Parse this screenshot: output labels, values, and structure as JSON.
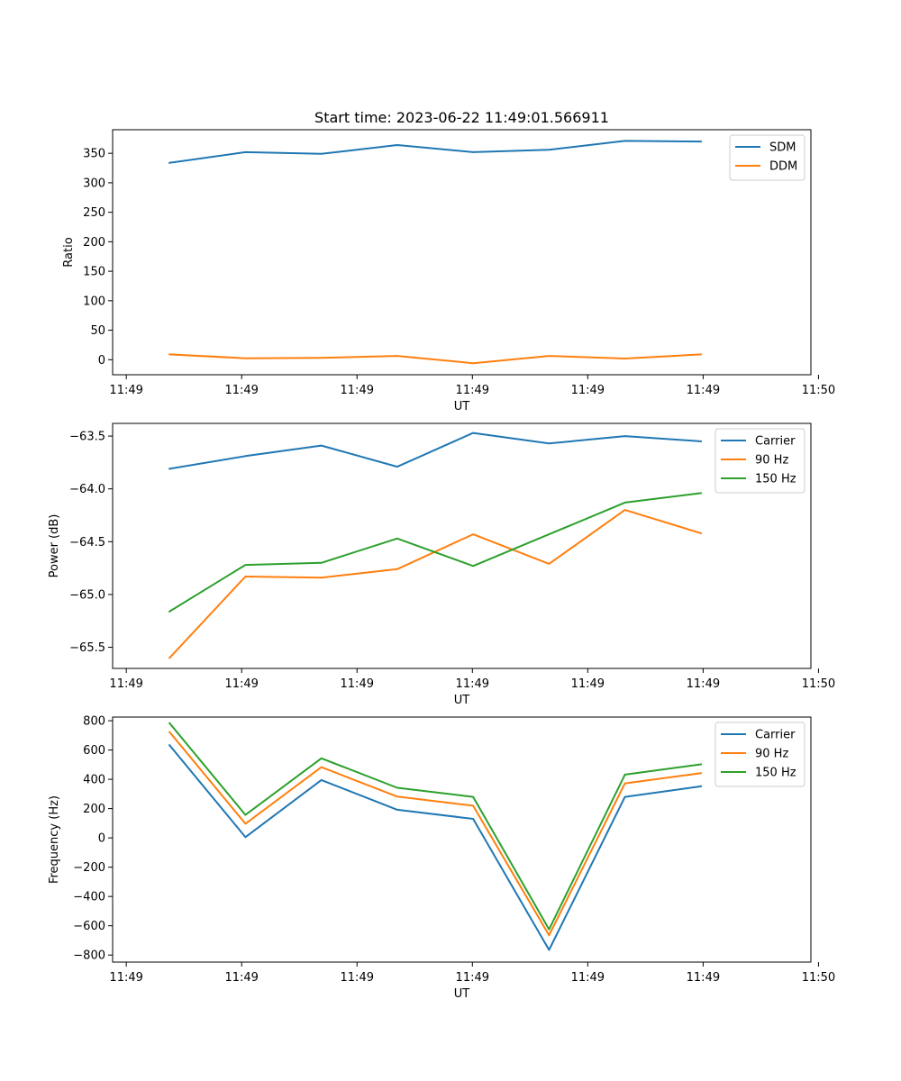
{
  "figure": {
    "title": "Start time: 2023-06-22 11:49:01.566911"
  },
  "chart_data": [
    {
      "type": "line",
      "title": "Start time: 2023-06-22 11:49:01.566911",
      "xlabel": "UT",
      "ylabel": "Ratio",
      "x": [
        1,
        2,
        3,
        4,
        5,
        6,
        7,
        8
      ],
      "xlim": [
        0.25,
        9.45
      ],
      "xticks": [
        0.43,
        1.95,
        3.47,
        4.99,
        6.51,
        8.03,
        9.55
      ],
      "xtick_labels": [
        "11:49",
        "11:49",
        "11:49",
        "11:49",
        "11:49",
        "11:49",
        "11:50"
      ],
      "ylim": [
        -25.5,
        390
      ],
      "yticks": [
        0,
        50,
        100,
        150,
        200,
        250,
        300,
        350
      ],
      "ytick_labels": [
        "0",
        "50",
        "100",
        "150",
        "200",
        "250",
        "300",
        "350"
      ],
      "legend_position": "top-right",
      "series": [
        {
          "name": "SDM",
          "color": "#1f77b4",
          "values": [
            334,
            352,
            349,
            364,
            352,
            356,
            371,
            370
          ]
        },
        {
          "name": "DDM",
          "color": "#ff7f0e",
          "values": [
            9,
            2.5,
            3,
            6.5,
            -6,
            6.5,
            2,
            9
          ]
        }
      ]
    },
    {
      "type": "line",
      "xlabel": "UT",
      "ylabel": "Power (dB)",
      "x": [
        1,
        2,
        3,
        4,
        5,
        6,
        7,
        8
      ],
      "xlim": [
        0.25,
        9.45
      ],
      "xticks": [
        0.43,
        1.95,
        3.47,
        4.99,
        6.51,
        8.03,
        9.55
      ],
      "xtick_labels": [
        "11:49",
        "11:49",
        "11:49",
        "11:49",
        "11:49",
        "11:49",
        "11:50"
      ],
      "ylim": [
        -65.7,
        -63.38
      ],
      "yticks": [
        -65.5,
        -65.0,
        -64.5,
        -64.0,
        -63.5
      ],
      "ytick_labels": [
        "−65.5",
        "−65.0",
        "−64.5",
        "−64.0",
        "−63.5"
      ],
      "legend_position": "top-right",
      "series": [
        {
          "name": "Carrier",
          "color": "#1f77b4",
          "values": [
            -63.81,
            -63.69,
            -63.59,
            -63.79,
            -63.47,
            -63.57,
            -63.5,
            -63.55
          ]
        },
        {
          "name": "90 Hz",
          "color": "#ff7f0e",
          "values": [
            -65.6,
            -64.83,
            -64.84,
            -64.76,
            -64.43,
            -64.71,
            -64.2,
            -64.42
          ]
        },
        {
          "name": "150 Hz",
          "color": "#2ca02c",
          "values": [
            -65.16,
            -64.72,
            -64.7,
            -64.47,
            -64.73,
            -64.43,
            -64.13,
            -64.04
          ]
        }
      ]
    },
    {
      "type": "line",
      "xlabel": "UT",
      "ylabel": "Frequency (Hz)",
      "x": [
        1,
        2,
        3,
        4,
        5,
        6,
        7,
        8
      ],
      "xlim": [
        0.25,
        9.45
      ],
      "xticks": [
        0.43,
        1.95,
        3.47,
        4.99,
        6.51,
        8.03,
        9.55
      ],
      "xtick_labels": [
        "11:49",
        "11:49",
        "11:49",
        "11:49",
        "11:49",
        "11:49",
        "11:50"
      ],
      "ylim": [
        -848,
        825
      ],
      "yticks": [
        -800,
        -600,
        -400,
        -200,
        0,
        200,
        400,
        600,
        800
      ],
      "ytick_labels": [
        "−800",
        "−600",
        "−400",
        "−200",
        "0",
        "200",
        "400",
        "600",
        "800"
      ],
      "legend_position": "top-right",
      "series": [
        {
          "name": "Carrier",
          "color": "#1f77b4",
          "values": [
            633,
            5,
            395,
            192,
            130,
            -765,
            280,
            352
          ]
        },
        {
          "name": "90 Hz",
          "color": "#ff7f0e",
          "values": [
            723,
            97,
            483,
            282,
            220,
            -665,
            372,
            442
          ]
        },
        {
          "name": "150 Hz",
          "color": "#2ca02c",
          "values": [
            783,
            157,
            543,
            342,
            280,
            -625,
            432,
            502
          ]
        }
      ]
    }
  ]
}
